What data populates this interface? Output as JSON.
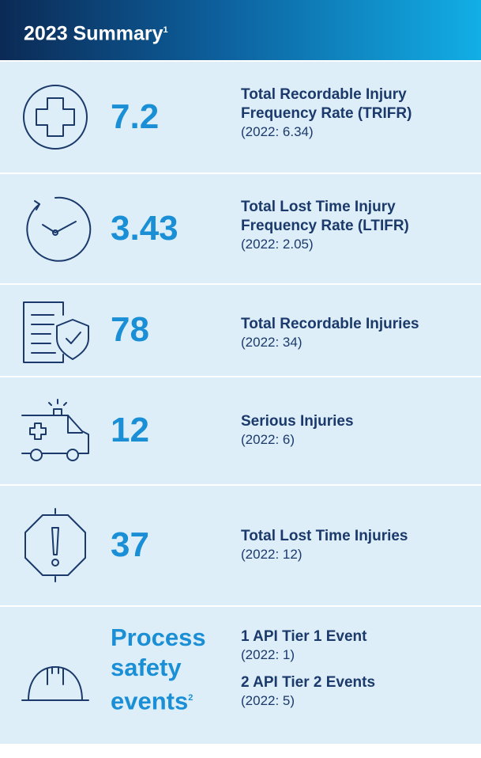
{
  "header": {
    "title": "2023 Summary",
    "note": "1"
  },
  "rows": [
    {
      "value": "7.2",
      "label": "Total Recordable Injury Frequency Rate (TRIFR)",
      "prior": "(2022: 6.34)"
    },
    {
      "value": "3.43",
      "label": "Total Lost Time Injury Frequency Rate (LTIFR)",
      "prior": "(2022: 2.05)"
    },
    {
      "value": "78",
      "label": "Total Recordable Injuries",
      "prior": "(2022: 34)"
    },
    {
      "value": "12",
      "label": "Serious Injuries",
      "prior": "(2022: 6)"
    },
    {
      "value": "37",
      "label": "Total Lost Time Injuries",
      "prior": "(2022: 12)"
    }
  ],
  "process": {
    "title": "Process safety events",
    "note": "2",
    "items": [
      {
        "label": "1 API Tier 1 Event",
        "prior": "(2022: 1)"
      },
      {
        "label": "2 API Tier 2 Events",
        "prior": "(2022: 5)"
      }
    ]
  }
}
